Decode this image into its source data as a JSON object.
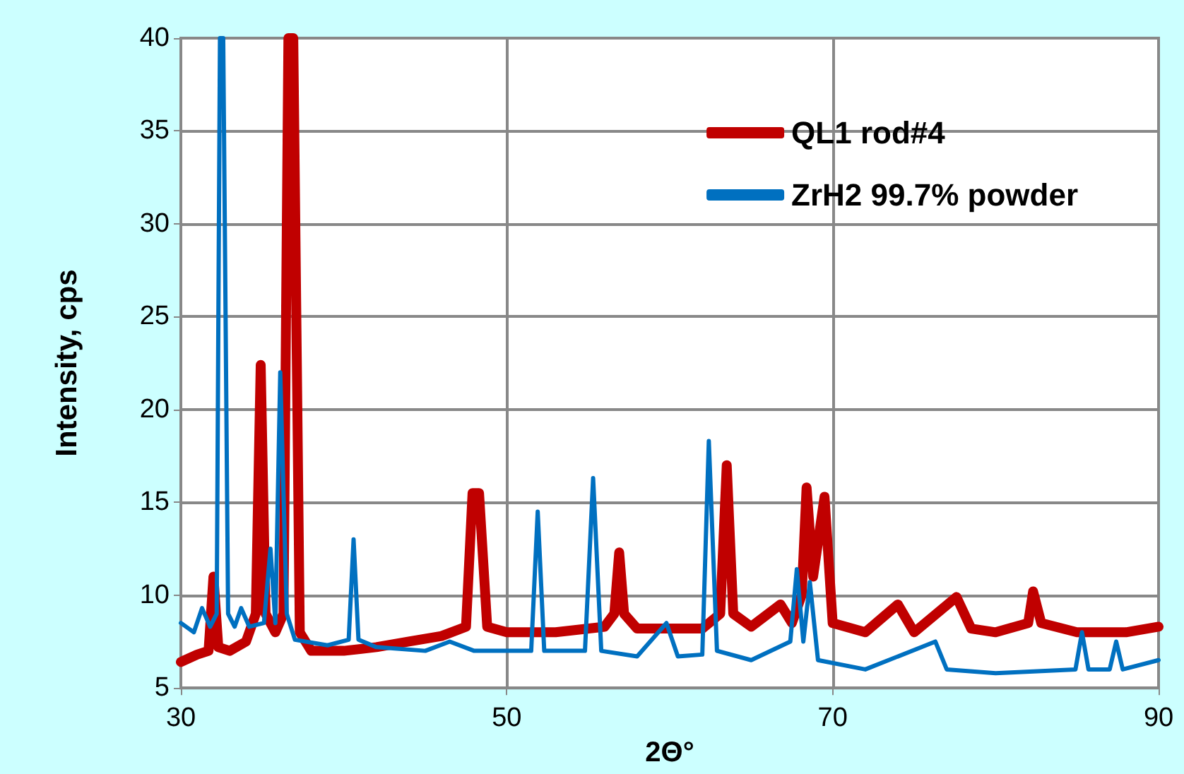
{
  "chart_data": {
    "type": "line",
    "xlabel": "2Θ°",
    "ylabel": "Intensity, cps",
    "xlim": [
      30,
      90
    ],
    "xticks": [
      30,
      50,
      70,
      90
    ],
    "ylim": [
      5,
      40
    ],
    "yticks": [
      5,
      10,
      15,
      20,
      25,
      30,
      35,
      40
    ],
    "grid": true,
    "legend": "top right",
    "marker": "none",
    "line_style": "solid",
    "series": [
      {
        "name": "QL1 rod#4",
        "color": "#c00000",
        "x": [
          30,
          31,
          31.7,
          32,
          32.3,
          33,
          34,
          34.6,
          34.9,
          35.2,
          35.8,
          36.3,
          36.6,
          36.9,
          37.3,
          38,
          40,
          42,
          44,
          46,
          47.5,
          47.9,
          48.3,
          48.8,
          50,
          53,
          56,
          56.6,
          56.9,
          57.2,
          58,
          60,
          62,
          63.1,
          63.5,
          63.9,
          65,
          66.8,
          67.5,
          68.1,
          68.4,
          68.8,
          69.5,
          70,
          72,
          74,
          75,
          77.6,
          78.5,
          80,
          82,
          82.3,
          82.8,
          85,
          88,
          90
        ],
        "values": [
          6.4,
          6.8,
          7.0,
          11,
          7.2,
          7.0,
          7.5,
          9,
          22.4,
          9,
          8,
          9,
          40,
          40,
          8,
          7,
          7,
          7.2,
          7.5,
          7.8,
          8.3,
          15.5,
          15.5,
          8.3,
          8,
          8,
          8.3,
          9,
          12.3,
          9,
          8.2,
          8.2,
          8.2,
          9,
          17,
          9,
          8.3,
          9.5,
          8.5,
          10,
          15.8,
          11,
          15.3,
          8.5,
          8,
          9.5,
          8,
          9.9,
          8.2,
          8,
          8.5,
          10.2,
          8.5,
          8,
          8,
          8.3
        ]
      },
      {
        "name": "ZrH2 99.7% powder",
        "color": "#0070c0",
        "x": [
          30,
          30.8,
          31.3,
          31.8,
          32.2,
          32.4,
          32.6,
          32.9,
          33.3,
          33.7,
          34.2,
          35.1,
          35.5,
          35.8,
          36.1,
          36.5,
          37,
          39,
          40.3,
          40.6,
          40.9,
          42,
          45,
          46.5,
          48,
          51.5,
          51.9,
          52.3,
          54.8,
          55.3,
          55.8,
          58,
          59.8,
          60.5,
          62,
          62.4,
          62.9,
          65,
          67.4,
          67.8,
          68.2,
          68.6,
          69.1,
          72,
          76.3,
          77,
          80,
          84.9,
          85.3,
          85.7,
          87,
          87.4,
          87.8,
          90
        ],
        "values": [
          8.5,
          8.0,
          9.3,
          8.3,
          9,
          40,
          40,
          9,
          8.3,
          9.3,
          8.3,
          8.5,
          12.5,
          8.5,
          22,
          9,
          7.6,
          7.3,
          7.6,
          13,
          7.6,
          7.2,
          7,
          7.5,
          7,
          7,
          14.5,
          7,
          7,
          16.3,
          7,
          6.7,
          8.5,
          6.7,
          6.8,
          18.3,
          7,
          6.5,
          7.5,
          11.4,
          7.5,
          10.7,
          6.5,
          6,
          7.5,
          6,
          5.8,
          6,
          8,
          6,
          6,
          7.5,
          6,
          6.5
        ]
      }
    ]
  }
}
